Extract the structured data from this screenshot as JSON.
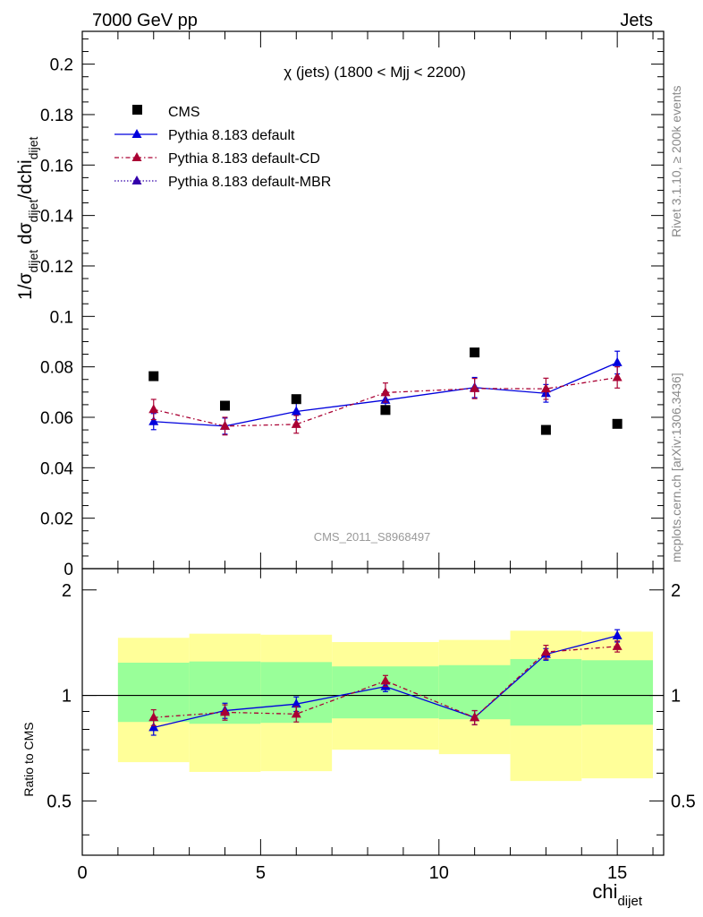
{
  "header": {
    "left": "7000 GeV pp",
    "right": "Jets"
  },
  "side_labels": {
    "rivet": "Rivet 3.1.10, ≥ 200k events",
    "mcplots": "mcplots.cern.ch [arXiv:1306.3436]"
  },
  "colors": {
    "cms": "#000000",
    "default": "#0000dd",
    "cd": "#aa0033",
    "mbr": "#3300aa",
    "band_outer": "#ffff99",
    "band_inner": "#99ff99"
  },
  "chart_data": [
    {
      "type": "scatter",
      "panel": "main",
      "title": "χ (jets) (1800 < Mjj < 2200)",
      "watermark": "CMS_2011_S8968497",
      "ylabel": {
        "main": "1/σ",
        "sub1": "dijet",
        "mid": " dσ",
        "sub2": "dijet",
        "tail": "/dchi",
        "sub3": "dijet"
      },
      "xlim": [
        0,
        16.3
      ],
      "ylim": [
        0,
        0.213
      ],
      "yticks": [
        0,
        0.02,
        0.04,
        0.06,
        0.08,
        0.1,
        0.12,
        0.14,
        0.16,
        0.18,
        0.2
      ],
      "ytick_labels": [
        "0",
        "0.02",
        "0.04",
        "0.06",
        "0.08",
        "0.1",
        "0.12",
        "0.14",
        "0.16",
        "0.18",
        "0.2"
      ],
      "x": [
        2,
        4,
        6,
        8.5,
        11,
        13,
        15
      ],
      "bin_edges": [
        1,
        3,
        5,
        7,
        10,
        12,
        14,
        16
      ],
      "legend": [
        "CMS",
        "Pythia 8.183 default",
        "Pythia 8.183 default-CD",
        "Pythia 8.183 default-MBR"
      ],
      "series": [
        {
          "name": "CMS",
          "key": "cms",
          "values": [
            0.0763,
            0.0646,
            0.0672,
            0.0629,
            0.0857,
            0.055,
            0.0574
          ]
        },
        {
          "name": "Pythia 8.183 default",
          "key": "default",
          "values": [
            0.0583,
            0.0565,
            0.0623,
            0.0668,
            0.0718,
            0.0695,
            0.0817
          ],
          "errors": [
            0.0032,
            0.0032,
            0.0033,
            0.0033,
            0.004,
            0.0035,
            0.0045
          ]
        },
        {
          "name": "Pythia 8.183 default-CD",
          "key": "cd",
          "values": [
            0.0631,
            0.0565,
            0.0572,
            0.0698,
            0.0714,
            0.0713,
            0.0758
          ],
          "errors": [
            0.004,
            0.0035,
            0.0035,
            0.0038,
            0.004,
            0.0042,
            0.0042
          ]
        },
        {
          "name": "Pythia 8.183 default-MBR",
          "key": "mbr",
          "values": [],
          "errors": []
        }
      ]
    },
    {
      "type": "scatter",
      "panel": "ratio",
      "ylabel": "Ratio to CMS",
      "xlabel": "chi",
      "xlabel_sub": "dijet",
      "xlim": [
        0,
        16.3
      ],
      "ylim": [
        0.35,
        2.3
      ],
      "xticks": [
        0,
        5,
        10,
        15
      ],
      "xtick_labels": [
        "0",
        "5",
        "10",
        "15"
      ],
      "yticks_labeled": [
        0.5,
        1,
        2
      ],
      "ytick_labels": [
        "0.5",
        "1",
        "2"
      ],
      "x": [
        2,
        4,
        6,
        8.5,
        11,
        13,
        15
      ],
      "bands": {
        "bin_edges": [
          1,
          3,
          5,
          7,
          10,
          12,
          14,
          16
        ],
        "outer_lo": [
          0.645,
          0.605,
          0.608,
          0.7,
          0.68,
          0.57,
          0.58
        ],
        "outer_hi": [
          1.46,
          1.5,
          1.49,
          1.42,
          1.44,
          1.53,
          1.52
        ],
        "inner_lo": [
          0.84,
          0.83,
          0.835,
          0.86,
          0.855,
          0.82,
          0.825
        ],
        "inner_hi": [
          1.24,
          1.25,
          1.245,
          1.21,
          1.22,
          1.27,
          1.26
        ]
      },
      "series": [
        {
          "name": "Pythia 8.183 default",
          "key": "default",
          "values": [
            0.81,
            0.905,
            0.945,
            1.06,
            0.865,
            1.31,
            1.48
          ],
          "errors": [
            0.04,
            0.045,
            0.045,
            0.035,
            0.04,
            0.05,
            0.06
          ]
        },
        {
          "name": "Pythia 8.183 default-CD",
          "key": "cd",
          "values": [
            0.865,
            0.895,
            0.885,
            1.1,
            0.865,
            1.33,
            1.38
          ],
          "errors": [
            0.045,
            0.045,
            0.045,
            0.04,
            0.04,
            0.06,
            0.05
          ]
        }
      ]
    }
  ]
}
